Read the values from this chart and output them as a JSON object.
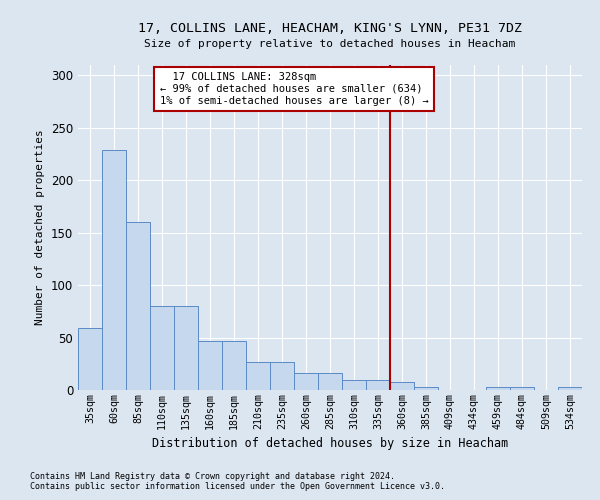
{
  "title1": "17, COLLINS LANE, HEACHAM, KING'S LYNN, PE31 7DZ",
  "title2": "Size of property relative to detached houses in Heacham",
  "xlabel": "Distribution of detached houses by size in Heacham",
  "ylabel": "Number of detached properties",
  "footnote1": "Contains HM Land Registry data © Crown copyright and database right 2024.",
  "footnote2": "Contains public sector information licensed under the Open Government Licence v3.0.",
  "categories": [
    "35sqm",
    "60sqm",
    "85sqm",
    "110sqm",
    "135sqm",
    "160sqm",
    "185sqm",
    "210sqm",
    "235sqm",
    "260sqm",
    "285sqm",
    "310sqm",
    "335sqm",
    "360sqm",
    "385sqm",
    "409sqm",
    "434sqm",
    "459sqm",
    "484sqm",
    "509sqm",
    "534sqm"
  ],
  "values": [
    59,
    229,
    160,
    80,
    80,
    47,
    47,
    27,
    27,
    16,
    16,
    10,
    10,
    8,
    3,
    0,
    0,
    3,
    3,
    0,
    3
  ],
  "bar_color": "#c5d8ed",
  "bar_edge_color": "#5b8ac5",
  "background_color": "#dce6f1",
  "plot_bg_color": "#dce6f1",
  "grid_color": "#ffffff",
  "annotation_text": "  17 COLLINS LANE: 328sqm  \n← 99% of detached houses are smaller (634)\n1% of semi-detached houses are larger (8) →",
  "vline_x_index": 12.5,
  "vline_color": "#aa0000",
  "annotation_box_color": "#aa0000",
  "ylim": [
    0,
    310
  ],
  "yticks": [
    0,
    50,
    100,
    150,
    200,
    250,
    300
  ]
}
